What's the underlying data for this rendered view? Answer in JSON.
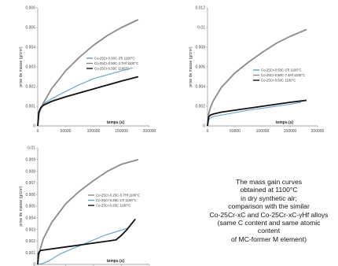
{
  "caption": {
    "lines": [
      "The mass gain curves",
      "obtained at 1100°C",
      "in dry synthetic air;",
      "comparison with the similar",
      "Co-25Cr-xC and Co-25Cr-xC-yHf alloys",
      "(same C content and same atomic",
      "content",
      "of MC-former M element)"
    ]
  },
  "chart_data": [
    {
      "type": "line",
      "xlabel": "temps (s)",
      "ylabel": "prise de masse (g/cm²)",
      "xlim": [
        0,
        200000
      ],
      "ylim": [
        0,
        0.006
      ],
      "xticks": [
        "0",
        "50000",
        "100000",
        "150000",
        "200000"
      ],
      "yticks": [
        "0",
        "0.001",
        "0.002",
        "0.003",
        "0.004",
        "0.005",
        "0.006"
      ],
      "legend_position": "center",
      "series": [
        {
          "name": "Co-25Cr-0.50C-3Ti 1100°C",
          "color": "#5aa0c8",
          "x": [
            0,
            2000,
            5000,
            10000,
            25000,
            50000,
            75000,
            100000,
            125000,
            150000,
            170000
          ],
          "y": [
            0,
            0.0007,
            0.00095,
            0.00112,
            0.00138,
            0.00175,
            0.0021,
            0.0024,
            0.0026,
            0.0028,
            0.00295
          ]
        },
        {
          "name": "Co-25Cr-0.50C-3.7Hf 1100°C",
          "color": "#8a8a8a",
          "x": [
            0,
            2000,
            5000,
            10000,
            25000,
            50000,
            75000,
            100000,
            125000,
            150000,
            180000
          ],
          "y": [
            0,
            0.0006,
            0.00085,
            0.00115,
            0.0019,
            0.0028,
            0.0035,
            0.0041,
            0.0046,
            0.005,
            0.0054
          ]
        },
        {
          "name": "Co-25Cr-0.50C 1100°C",
          "color": "#111111",
          "x": [
            0,
            2000,
            5000,
            10000,
            25000,
            50000,
            75000,
            100000,
            125000,
            150000,
            180000
          ],
          "y": [
            0,
            0.0007,
            0.0009,
            0.00105,
            0.00125,
            0.00148,
            0.00168,
            0.00188,
            0.00208,
            0.00228,
            0.0025
          ]
        }
      ]
    },
    {
      "type": "line",
      "xlabel": "temps (s)",
      "ylabel": "prise de masse (g/cm²)",
      "xlim": [
        0,
        200000
      ],
      "ylim": [
        0,
        0.012
      ],
      "xticks": [
        "0",
        "50000",
        "100000",
        "150000",
        "200000"
      ],
      "yticks": [
        "0",
        "0.002",
        "0.004",
        "0.006",
        "0.008",
        "0.01",
        "0.012"
      ],
      "legend_position": "center",
      "series": [
        {
          "name": "Co-25Cr-0.50C-2Ti 1100°C",
          "color": "#5aa0c8",
          "x": [
            0,
            2000,
            5000,
            10000,
            25000,
            50000,
            75000,
            100000,
            125000,
            150000,
            170000
          ],
          "y": [
            0,
            0.0006,
            0.0008,
            0.00095,
            0.0011,
            0.00135,
            0.0016,
            0.0018,
            0.002,
            0.0022,
            0.0024
          ]
        },
        {
          "name": "Co-25Cr-0.50C-7.4Hf 1100°C",
          "color": "#8a8a8a",
          "x": [
            0,
            2000,
            5000,
            10000,
            25000,
            50000,
            75000,
            100000,
            125000,
            150000,
            180000
          ],
          "y": [
            0,
            0.0012,
            0.0018,
            0.0025,
            0.0039,
            0.0054,
            0.0065,
            0.0075,
            0.0084,
            0.0091,
            0.0098
          ]
        },
        {
          "name": "Co-25Cr-0.50C 1100°C",
          "color": "#111111",
          "x": [
            0,
            2000,
            5000,
            10000,
            25000,
            50000,
            75000,
            100000,
            125000,
            150000,
            180000
          ],
          "y": [
            0,
            0.0009,
            0.0011,
            0.0012,
            0.0014,
            0.0016,
            0.0018,
            0.002,
            0.0022,
            0.0024,
            0.0026
          ]
        }
      ]
    },
    {
      "type": "line",
      "xlabel": "temps (s)",
      "ylabel": "prise de masse (g/cm²)",
      "xlim": [
        0,
        200000
      ],
      "ylim": [
        0,
        0.01
      ],
      "xticks": [
        "0",
        "50000",
        "100000",
        "150000",
        "200000"
      ],
      "yticks": [
        "0",
        "0.001",
        "0.002",
        "0.003",
        "0.004",
        "0.005",
        "0.006",
        "0.007",
        "0.008",
        "0.009",
        "0.01"
      ],
      "legend_position": "center",
      "series": [
        {
          "name": "Co-25Cr-0.25C-3.7Hf 1100°C",
          "color": "#8a8a8a",
          "x": [
            0,
            2000,
            5000,
            10000,
            25000,
            50000,
            75000,
            100000,
            125000,
            150000,
            180000
          ],
          "y": [
            0,
            0.0008,
            0.0014,
            0.0022,
            0.0036,
            0.0052,
            0.0063,
            0.0072,
            0.008,
            0.0086,
            0.009
          ]
        },
        {
          "name": "Co-25Cr-0.25C-1Ti 1100°C",
          "color": "#5aa0c8",
          "x": [
            0,
            10000,
            20000,
            40000,
            60000,
            80000,
            100000,
            120000,
            140000,
            160000
          ],
          "y": [
            0,
            0.0001,
            0.0003,
            0.0009,
            0.0013,
            0.0017,
            0.0021,
            0.0025,
            0.0028,
            0.0031
          ]
        },
        {
          "name": "Co-25Cr-0.25C 1100°C",
          "color": "#111111",
          "x": [
            0,
            1000,
            3000,
            5000,
            20000,
            50000,
            80000,
            110000,
            140000,
            150000,
            160000,
            175000
          ],
          "y": [
            0,
            0.0009,
            0.0011,
            0.0012,
            0.0013,
            0.0015,
            0.0017,
            0.0019,
            0.0021,
            0.0025,
            0.003,
            0.0039
          ]
        }
      ]
    }
  ]
}
